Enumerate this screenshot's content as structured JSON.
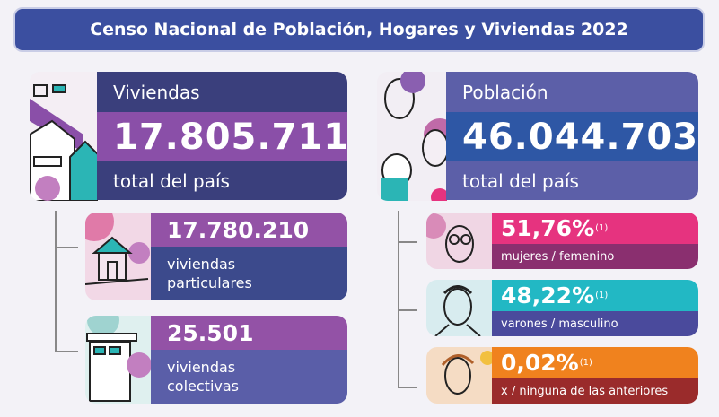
{
  "header": {
    "title": "Censo Nacional de Población, Hogares y Viviendas 2022"
  },
  "viviendas": {
    "label": "Viviendas",
    "value": "17.805.711",
    "sub": "total del país",
    "particulares": {
      "value": "17.780.210",
      "line1": "viviendas",
      "line2": "particulares"
    },
    "colectivas": {
      "value": "25.501",
      "line1": "viviendas",
      "line2": "colectivas"
    }
  },
  "poblacion": {
    "label": "Población",
    "value": "46.044.703",
    "sub": "total del país",
    "groups": [
      {
        "value": "51,76%",
        "note": "(1)",
        "label": "mujeres / femenino",
        "color": "#e6337f"
      },
      {
        "value": "48,22%",
        "note": "(1)",
        "label": "varones / masculino",
        "color": "#22b8c4"
      },
      {
        "value": "0,02%",
        "note": "(1)",
        "label": "x / ninguna de las anteriores",
        "color": "#f0821e"
      }
    ]
  },
  "colors": {
    "navy": "#3a3f7c",
    "purple": "#8a4fa8",
    "blue": "#2e57a5",
    "pink": "#e6337f",
    "teal": "#22b8c4",
    "orange": "#f0821e"
  }
}
